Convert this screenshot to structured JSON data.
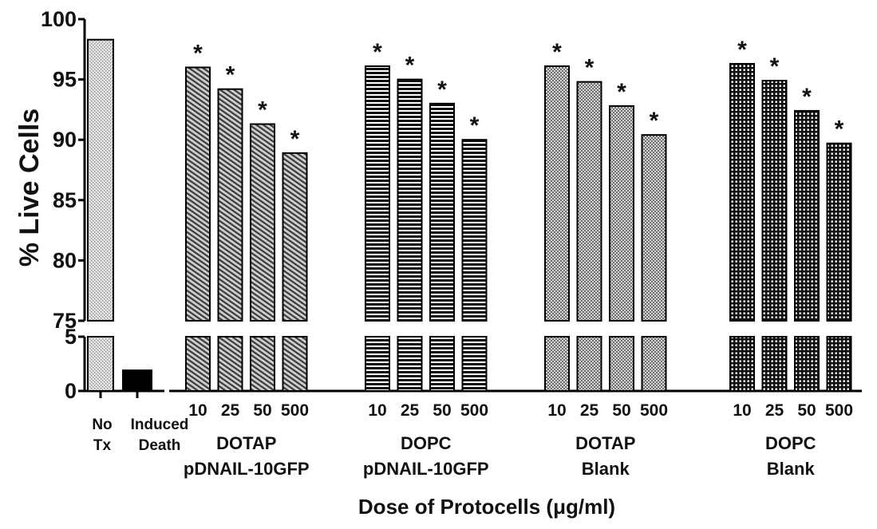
{
  "chart_data": {
    "type": "bar",
    "ylabel": "% Live Cells",
    "xlabel": "Dose of Protocells (μg/ml)",
    "y_axis_break": {
      "lower_range": [
        0,
        5
      ],
      "upper_range": [
        75,
        100
      ]
    },
    "y_ticks_upper": [
      "75",
      "80",
      "85",
      "90",
      "95",
      "100"
    ],
    "y_ticks_lower": [
      "0",
      "5"
    ],
    "controls": [
      {
        "label_lines": [
          "No",
          "Tx"
        ],
        "value": 98.3,
        "pattern": "dots"
      },
      {
        "label_lines": [
          "Induced",
          "Death"
        ],
        "value": 1.9,
        "pattern": "solid"
      }
    ],
    "dose_categories": [
      "10",
      "25",
      "50",
      "500"
    ],
    "significance_marker": "*",
    "series": [
      {
        "group_label_lines": [
          "DOTAP",
          "pDNAIL-10GFP"
        ],
        "pattern": "diagonal",
        "values": [
          96.0,
          94.2,
          91.3,
          88.9
        ]
      },
      {
        "group_label_lines": [
          "DOPC",
          "pDNAIL-10GFP"
        ],
        "pattern": "horizontal",
        "values": [
          96.1,
          95.0,
          93.0,
          90.0
        ]
      },
      {
        "group_label_lines": [
          "DOTAP",
          "Blank"
        ],
        "pattern": "crosshatch",
        "values": [
          96.1,
          94.8,
          92.8,
          90.4
        ]
      },
      {
        "group_label_lines": [
          "DOPC",
          "Blank"
        ],
        "pattern": "grid",
        "values": [
          96.3,
          94.9,
          92.4,
          89.7
        ]
      }
    ]
  }
}
